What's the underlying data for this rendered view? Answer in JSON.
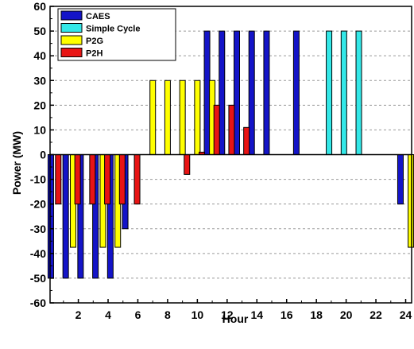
{
  "chart_data": {
    "type": "bar",
    "xlabel": "Hour",
    "ylabel": "Power (MW)",
    "xlim": [
      0.1,
      24.4
    ],
    "ylim": [
      -60,
      60
    ],
    "xticks": [
      2,
      4,
      6,
      8,
      10,
      12,
      14,
      16,
      18,
      20,
      22,
      24
    ],
    "yticks": [
      -60,
      -50,
      -40,
      -30,
      -20,
      -10,
      0,
      10,
      20,
      30,
      40,
      50,
      60
    ],
    "grid": "horizontal dashed",
    "legend_position": "top-left",
    "series": [
      {
        "name": "CAES",
        "color": "#1414c8",
        "points": [
          [
            0.15,
            -50
          ],
          [
            1.15,
            -50
          ],
          [
            2.15,
            -50
          ],
          [
            3.15,
            -50
          ],
          [
            4.15,
            -50
          ],
          [
            5.15,
            -30
          ],
          [
            10.65,
            50
          ],
          [
            11.65,
            50
          ],
          [
            12.65,
            50
          ],
          [
            13.65,
            50
          ],
          [
            14.65,
            50
          ],
          [
            16.65,
            50
          ],
          [
            23.65,
            -20
          ]
        ]
      },
      {
        "name": "Simple Cycle",
        "color": "#33e8e8",
        "points": [
          [
            18.85,
            50
          ],
          [
            19.85,
            50
          ],
          [
            20.85,
            50
          ]
        ]
      },
      {
        "name": "P2G",
        "color": "#ffff00",
        "points": [
          [
            1.65,
            -37.5
          ],
          [
            3.65,
            -37.5
          ],
          [
            4.65,
            -37.5
          ],
          [
            7.0,
            30
          ],
          [
            8.0,
            30
          ],
          [
            9.0,
            30
          ],
          [
            10.0,
            30
          ],
          [
            11.0,
            30
          ],
          [
            24.35,
            -37.5
          ]
        ]
      },
      {
        "name": "P2H",
        "color": "#e81414",
        "points": [
          [
            0.65,
            -20
          ],
          [
            1.95,
            -20
          ],
          [
            2.95,
            -20
          ],
          [
            3.95,
            -20
          ],
          [
            4.95,
            -20
          ],
          [
            5.95,
            -20
          ],
          [
            9.3,
            -8
          ],
          [
            10.3,
            1
          ],
          [
            11.3,
            20
          ],
          [
            12.3,
            20
          ],
          [
            13.3,
            11
          ]
        ]
      }
    ]
  }
}
